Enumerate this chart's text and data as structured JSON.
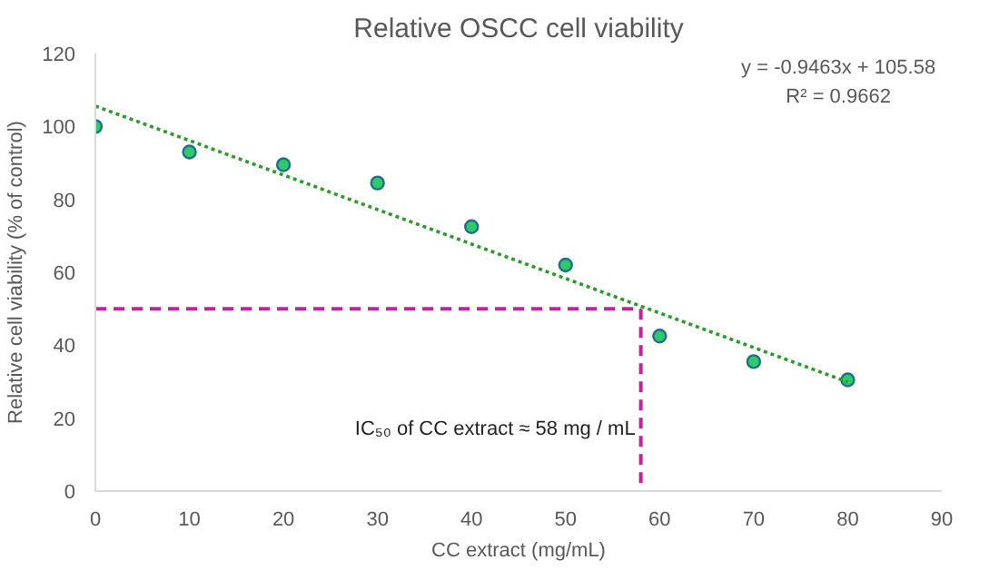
{
  "chart_data": {
    "type": "scatter",
    "title": "Relative OSCC cell viability",
    "xlabel": "CC extract (mg/mL)",
    "ylabel": "Relative cell viability (% of control)",
    "x": [
      0,
      10,
      20,
      30,
      40,
      50,
      60,
      70,
      80
    ],
    "series": [
      {
        "color": "#2fc86a",
        "marker": "circle",
        "values": [
          100,
          93,
          89.5,
          84.5,
          72.5,
          62,
          42.5,
          35.5,
          30.5
        ]
      },
      {
        "type": "line",
        "color": "#2e9a2e",
        "line_style": "dotted",
        "x": [
          0,
          80
        ],
        "values": [
          105.6,
          29.9
        ]
      },
      {
        "type": "line",
        "color": "#c0249a",
        "line_style": "dashed",
        "x": [
          0,
          58
        ],
        "values": [
          50,
          50
        ]
      },
      {
        "type": "line",
        "color": "#c0249a",
        "line_style": "dashed",
        "x": [
          58,
          58
        ],
        "values": [
          50,
          0
        ]
      }
    ],
    "xlim": [
      0,
      90
    ],
    "ylim": [
      0,
      120
    ],
    "xticks": [
      0,
      10,
      20,
      30,
      40,
      50,
      60,
      70,
      80,
      90
    ],
    "yticks": [
      0,
      20,
      40,
      60,
      80,
      100,
      120
    ],
    "grid": false,
    "annotations": [
      "y = -0.9463x + 105.58",
      "R² = 0.9662",
      {
        "text": "IC₅₀ of CC extract ≈ 58 mg / mL",
        "x": 58,
        "y": 17
      }
    ]
  }
}
